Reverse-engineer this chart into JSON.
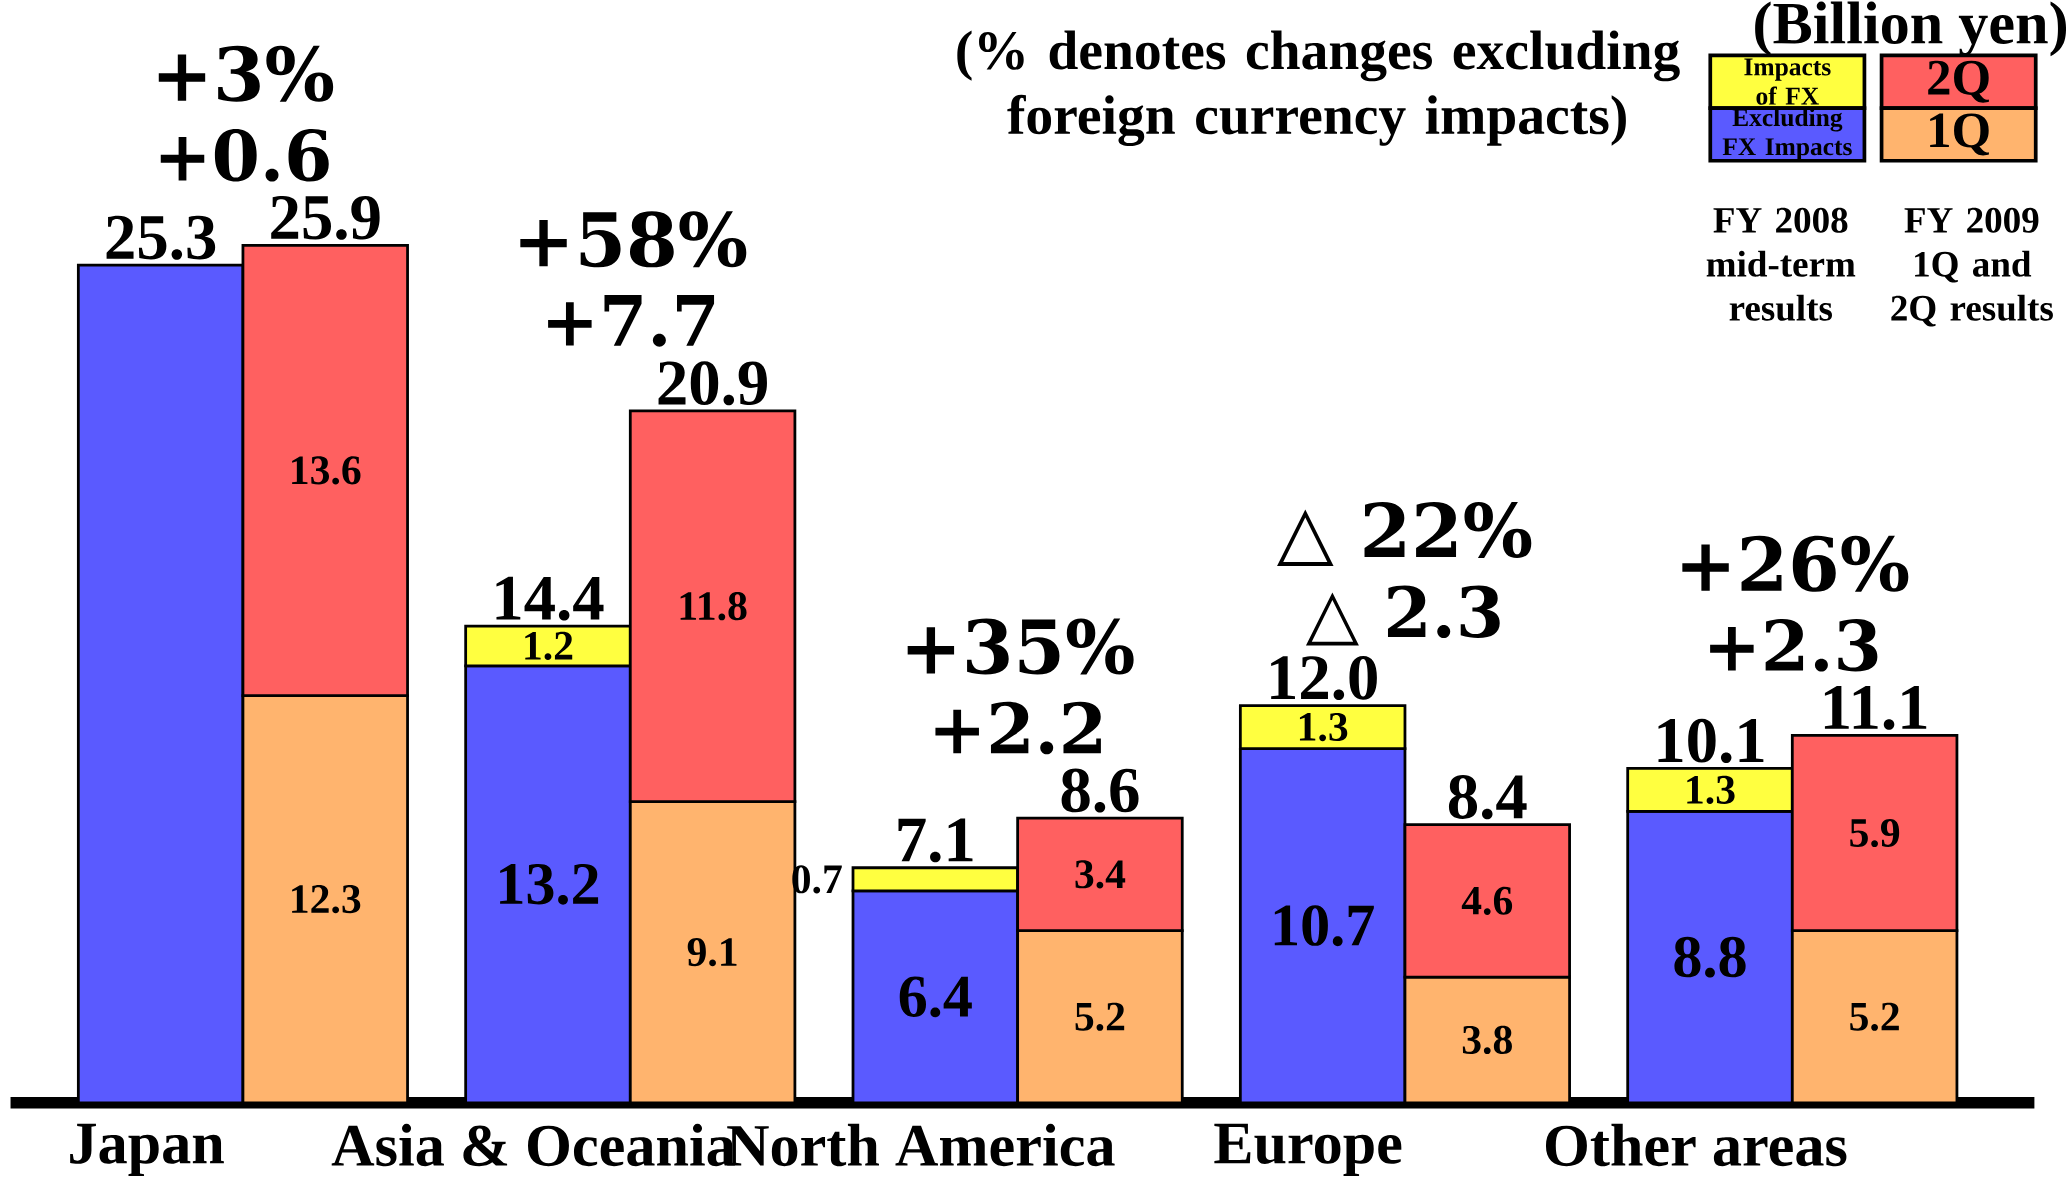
{
  "chart_data": {
    "type": "bar",
    "stacked": true,
    "categories": [
      "Japan",
      null,
      "Asia & Oceania",
      null,
      "North America",
      null,
      "Europe",
      null,
      "Other areas",
      null
    ],
    "series": [
      {
        "name": "Excluding FX Impacts",
        "color": "#5a5aff",
        "values": [
          25.3,
          null,
          13.2,
          null,
          6.4,
          null,
          10.7,
          null,
          8.8,
          null
        ],
        "value_labels": [
          null,
          null,
          "13.2",
          null,
          "6.4",
          null,
          "10.7",
          null,
          "8.8",
          null
        ]
      },
      {
        "name": "Impacts of FX",
        "color": "#ffff40",
        "values": [
          null,
          null,
          1.2,
          null,
          0.7,
          null,
          1.3,
          null,
          1.3,
          null
        ],
        "value_labels": [
          null,
          null,
          "1.2",
          null,
          "0.7",
          null,
          "1.3",
          null,
          "1.3",
          null
        ]
      },
      {
        "name": "1Q",
        "color": "#ffb46e",
        "values": [
          null,
          12.3,
          null,
          9.1,
          null,
          5.2,
          null,
          3.8,
          null,
          5.2
        ],
        "value_labels": [
          null,
          "12.3",
          null,
          "9.1",
          null,
          "5.2",
          null,
          "3.8",
          null,
          "5.2"
        ]
      },
      {
        "name": "2Q",
        "color": "#ff6060",
        "values": [
          null,
          13.6,
          null,
          11.8,
          null,
          3.4,
          null,
          4.6,
          null,
          5.9
        ],
        "value_labels": [
          null,
          "13.6",
          null,
          "11.8",
          null,
          "3.4",
          null,
          "4.6",
          null,
          "5.9"
        ]
      }
    ],
    "totals": [
      "25.3",
      "25.9",
      "14.4",
      "20.9",
      "7.1",
      "8.6",
      "12.0",
      "8.4",
      "10.1",
      "11.1"
    ],
    "annotations": [
      "+3%",
      "+58%",
      "+35%",
      "△ 22%",
      "+26%",
      "+0.6",
      "+7.7",
      "+2.2",
      "△ 2.3",
      "+2.3",
      "(% denotes changes excluding foreign currency impacts)",
      "(Billion yen)",
      "FY 2008 mid-term results",
      "FY 2009 1Q and 2Q results"
    ],
    "legend": "top right"
  }
}
